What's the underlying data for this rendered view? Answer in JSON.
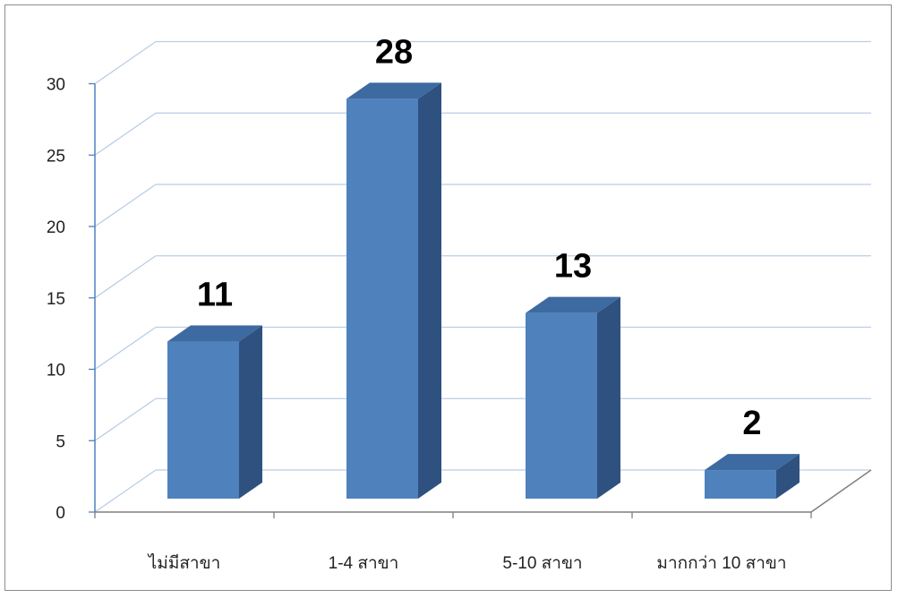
{
  "chart_data": {
    "type": "bar",
    "style": "3d-column",
    "categories": [
      "ไม่มีสาขา",
      "1-4 สาขา",
      "5-10 สาขา",
      "มากกว่า 10 สาขา"
    ],
    "values": [
      11,
      28,
      13,
      2
    ],
    "data_labels": [
      "11",
      "28",
      "13",
      "2"
    ],
    "yticks": [
      "0",
      "5",
      "10",
      "15",
      "20",
      "25",
      "30"
    ],
    "ylim": [
      0,
      30
    ],
    "ystep": 5,
    "grid": true,
    "legend": "none",
    "title": "",
    "xlabel": "",
    "ylabel": "",
    "colors": {
      "bar_front": "#4f81bd",
      "bar_side": "#2f5180",
      "bar_top": "#3d6aa0",
      "gridline": "#b9cde5",
      "axis": "#7f7f7f",
      "value_axis": "#4f81bd"
    }
  }
}
